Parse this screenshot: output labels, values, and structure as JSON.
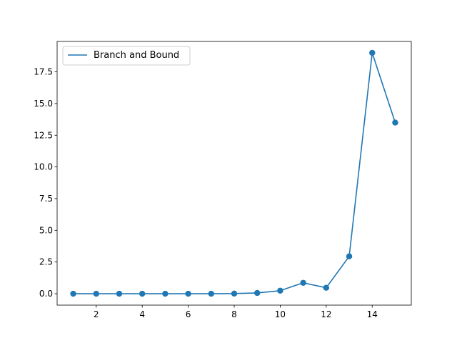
{
  "chart_data": {
    "type": "line",
    "title": "",
    "xlabel": "",
    "ylabel": "",
    "x": [
      1,
      2,
      3,
      4,
      5,
      6,
      7,
      8,
      9,
      10,
      11,
      12,
      13,
      14,
      15
    ],
    "series": [
      {
        "name": "Branch and Bound",
        "values": [
          0.0,
          0.0,
          0.0,
          0.0,
          0.0,
          0.0,
          0.0,
          0.01,
          0.06,
          0.24,
          0.86,
          0.47,
          2.95,
          19.0,
          13.5
        ],
        "color": "#1f77b4",
        "marker": "circle"
      }
    ],
    "xlim": [
      0.3,
      15.7
    ],
    "ylim": [
      -0.9,
      19.9
    ],
    "xticks": [
      2,
      4,
      6,
      8,
      10,
      12,
      14
    ],
    "xtick_labels": [
      "2",
      "4",
      "6",
      "8",
      "10",
      "12",
      "14"
    ],
    "yticks": [
      0,
      2.5,
      5,
      7.5,
      10,
      12.5,
      15,
      17.5
    ],
    "ytick_labels": [
      "0.0",
      "2.5",
      "5.0",
      "7.5",
      "10.0",
      "12.5",
      "15.0",
      "17.5"
    ],
    "grid": false,
    "legend_position": "top-left"
  }
}
